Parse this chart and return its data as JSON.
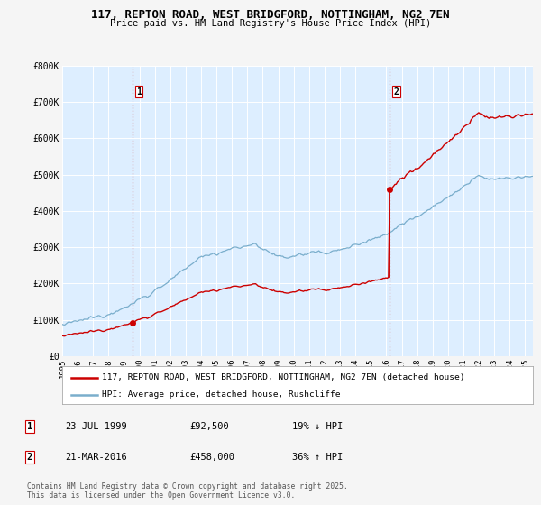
{
  "title": "117, REPTON ROAD, WEST BRIDGFORD, NOTTINGHAM, NG2 7EN",
  "subtitle": "Price paid vs. HM Land Registry's House Price Index (HPI)",
  "bg_color": "#ddeeff",
  "fig_bg_color": "#f5f5f5",
  "red_color": "#cc0000",
  "blue_color": "#7aaecc",
  "ylim": [
    0,
    800000
  ],
  "yticks": [
    0,
    100000,
    200000,
    300000,
    400000,
    500000,
    600000,
    700000,
    800000
  ],
  "ytick_labels": [
    "£0",
    "£100K",
    "£200K",
    "£300K",
    "£400K",
    "£500K",
    "£600K",
    "£700K",
    "£800K"
  ],
  "xstart": 1995.0,
  "xend": 2025.5,
  "purchase1_year": 1999.55,
  "purchase1_price": 92500,
  "purchase2_year": 2016.22,
  "purchase2_price": 458000,
  "legend_line1": "117, REPTON ROAD, WEST BRIDGFORD, NOTTINGHAM, NG2 7EN (detached house)",
  "legend_line2": "HPI: Average price, detached house, Rushcliffe",
  "table_row1_date": "23-JUL-1999",
  "table_row1_price": "£92,500",
  "table_row1_hpi": "19% ↓ HPI",
  "table_row2_date": "21-MAR-2016",
  "table_row2_price": "£458,000",
  "table_row2_hpi": "36% ↑ HPI",
  "footer": "Contains HM Land Registry data © Crown copyright and database right 2025.\nThis data is licensed under the Open Government Licence v3.0."
}
